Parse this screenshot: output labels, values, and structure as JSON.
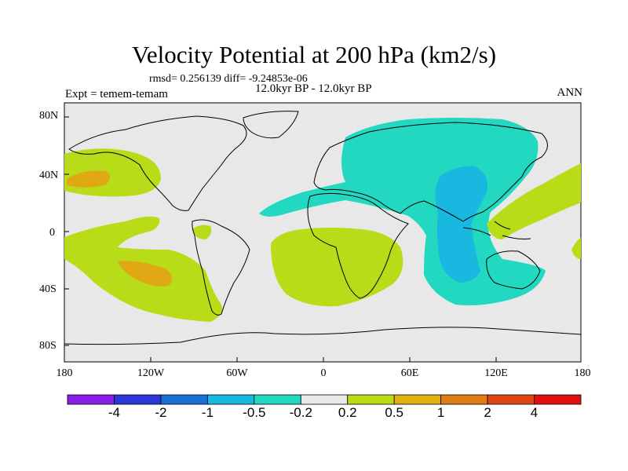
{
  "title": "Velocity Potential at 200 hPa (km2/s)",
  "stats": "rmsd= 0.256139 diff= -9.24853e-06",
  "period": "12.0kyr BP - 12.0kyr BP",
  "experiment": "Expt = temem-temam",
  "season": "ANN",
  "lat_labels": [
    "80N",
    "40N",
    "0",
    "40S",
    "80S"
  ],
  "lon_labels": [
    "180",
    "120W",
    "60W",
    "0",
    "60E",
    "120E",
    "180"
  ],
  "colorbar": {
    "labels": [
      "-4",
      "-2",
      "-1",
      "-0.5",
      "-0.2",
      "0.2",
      "0.5",
      "1",
      "2",
      "4"
    ],
    "colors": [
      "#8a1ee6",
      "#2a38d8",
      "#1670d8",
      "#19b8e0",
      "#22d8c0",
      "#e8e8e8",
      "#b8dc18",
      "#e0b014",
      "#e07c14",
      "#e04614",
      "#e01010"
    ]
  },
  "colors": {
    "land_ocean_bg": "#e8e8e8",
    "positive_weak": "#b8dc18",
    "positive_mid": "#e0a814",
    "negative_weak": "#22d8c0",
    "negative_mid": "#19b8e0"
  }
}
